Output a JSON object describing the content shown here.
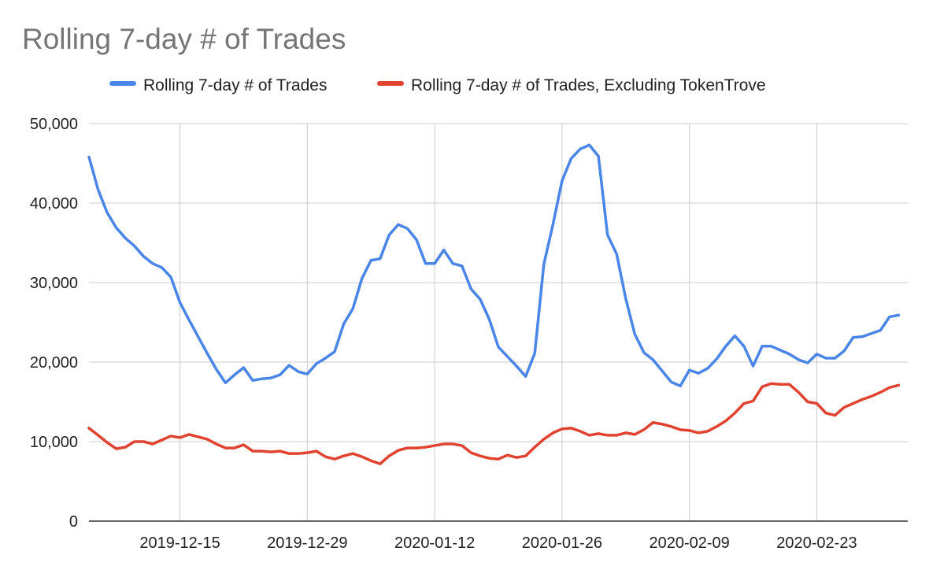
{
  "chart_data": {
    "type": "line",
    "title": "Rolling 7-day # of Trades",
    "xlabel": "",
    "ylabel": "",
    "ylim": [
      0,
      50000
    ],
    "y_ticks": [
      {
        "value": 0,
        "label": "0"
      },
      {
        "value": 10000,
        "label": "10,000"
      },
      {
        "value": 20000,
        "label": "20,000"
      },
      {
        "value": 30000,
        "label": "30,000"
      },
      {
        "value": 40000,
        "label": "40,000"
      },
      {
        "value": 50000,
        "label": "50,000"
      }
    ],
    "x_range": [
      "2019-12-05",
      "2020-03-04"
    ],
    "x_ticks": [
      "2019-12-15",
      "2019-12-29",
      "2020-01-12",
      "2020-01-26",
      "2020-02-09",
      "2020-02-23"
    ],
    "grid": true,
    "legend_position": "top",
    "series": [
      {
        "name": "Rolling 7-day # of Trades",
        "color": "#4a86e8",
        "points": [
          [
            "2019-12-05",
            45800
          ],
          [
            "2019-12-06",
            41700
          ],
          [
            "2019-12-07",
            38800
          ],
          [
            "2019-12-08",
            36900
          ],
          [
            "2019-12-09",
            35600
          ],
          [
            "2019-12-10",
            34600
          ],
          [
            "2019-12-11",
            33300
          ],
          [
            "2019-12-12",
            32400
          ],
          [
            "2019-12-13",
            31900
          ],
          [
            "2019-12-14",
            30700
          ],
          [
            "2019-12-15",
            27500
          ],
          [
            "2019-12-16",
            25300
          ],
          [
            "2019-12-17",
            23200
          ],
          [
            "2019-12-18",
            21100
          ],
          [
            "2019-12-19",
            19100
          ],
          [
            "2019-12-20",
            17400
          ],
          [
            "2019-12-21",
            18400
          ],
          [
            "2019-12-22",
            19300
          ],
          [
            "2019-12-23",
            17700
          ],
          [
            "2019-12-24",
            17900
          ],
          [
            "2019-12-25",
            18000
          ],
          [
            "2019-12-26",
            18400
          ],
          [
            "2019-12-27",
            19600
          ],
          [
            "2019-12-28",
            18800
          ],
          [
            "2019-12-29",
            18500
          ],
          [
            "2019-12-30",
            19800
          ],
          [
            "2019-12-31",
            20500
          ],
          [
            "2020-01-01",
            21300
          ],
          [
            "2020-01-02",
            24800
          ],
          [
            "2020-01-03",
            26700
          ],
          [
            "2020-01-04",
            30500
          ],
          [
            "2020-01-05",
            32800
          ],
          [
            "2020-01-06",
            33000
          ],
          [
            "2020-01-07",
            36000
          ],
          [
            "2020-01-08",
            37300
          ],
          [
            "2020-01-09",
            36800
          ],
          [
            "2020-01-10",
            35400
          ],
          [
            "2020-01-11",
            32400
          ],
          [
            "2020-01-12",
            32400
          ],
          [
            "2020-01-13",
            34100
          ],
          [
            "2020-01-14",
            32400
          ],
          [
            "2020-01-15",
            32100
          ],
          [
            "2020-01-16",
            29200
          ],
          [
            "2020-01-17",
            27900
          ],
          [
            "2020-01-18",
            25400
          ],
          [
            "2020-01-19",
            21900
          ],
          [
            "2020-01-20",
            20700
          ],
          [
            "2020-01-21",
            19500
          ],
          [
            "2020-01-22",
            18200
          ],
          [
            "2020-01-23",
            21100
          ],
          [
            "2020-01-24",
            32300
          ],
          [
            "2020-01-25",
            37300
          ],
          [
            "2020-01-26",
            42800
          ],
          [
            "2020-01-27",
            45600
          ],
          [
            "2020-01-28",
            46800
          ],
          [
            "2020-01-29",
            47300
          ],
          [
            "2020-01-30",
            45900
          ],
          [
            "2020-01-31",
            36000
          ],
          [
            "2020-02-01",
            33600
          ],
          [
            "2020-02-02",
            28000
          ],
          [
            "2020-02-03",
            23500
          ],
          [
            "2020-02-04",
            21200
          ],
          [
            "2020-02-05",
            20300
          ],
          [
            "2020-02-06",
            18900
          ],
          [
            "2020-02-07",
            17500
          ],
          [
            "2020-02-08",
            17000
          ],
          [
            "2020-02-09",
            19000
          ],
          [
            "2020-02-10",
            18600
          ],
          [
            "2020-02-11",
            19200
          ],
          [
            "2020-02-12",
            20400
          ],
          [
            "2020-02-13",
            22000
          ],
          [
            "2020-02-14",
            23300
          ],
          [
            "2020-02-15",
            22000
          ],
          [
            "2020-02-16",
            19500
          ],
          [
            "2020-02-17",
            22000
          ],
          [
            "2020-02-18",
            22000
          ],
          [
            "2020-02-19",
            21500
          ],
          [
            "2020-02-20",
            21000
          ],
          [
            "2020-02-21",
            20300
          ],
          [
            "2020-02-22",
            19900
          ],
          [
            "2020-02-23",
            21000
          ],
          [
            "2020-02-24",
            20500
          ],
          [
            "2020-02-25",
            20500
          ],
          [
            "2020-02-26",
            21400
          ],
          [
            "2020-02-27",
            23100
          ],
          [
            "2020-02-28",
            23200
          ],
          [
            "2020-02-29",
            23600
          ],
          [
            "2020-03-01",
            24000
          ],
          [
            "2020-03-02",
            25700
          ],
          [
            "2020-03-03",
            25900
          ]
        ]
      },
      {
        "name": "Rolling 7-day # of Trades, Excluding TokenTrove",
        "color": "#e0432f",
        "points": [
          [
            "2019-12-05",
            11700
          ],
          [
            "2019-12-06",
            10800
          ],
          [
            "2019-12-07",
            9900
          ],
          [
            "2019-12-08",
            9100
          ],
          [
            "2019-12-09",
            9300
          ],
          [
            "2019-12-10",
            10000
          ],
          [
            "2019-12-11",
            10000
          ],
          [
            "2019-12-12",
            9700
          ],
          [
            "2019-12-13",
            10200
          ],
          [
            "2019-12-14",
            10700
          ],
          [
            "2019-12-15",
            10500
          ],
          [
            "2019-12-16",
            10900
          ],
          [
            "2019-12-17",
            10600
          ],
          [
            "2019-12-18",
            10300
          ],
          [
            "2019-12-19",
            9700
          ],
          [
            "2019-12-20",
            9200
          ],
          [
            "2019-12-21",
            9200
          ],
          [
            "2019-12-22",
            9600
          ],
          [
            "2019-12-23",
            8800
          ],
          [
            "2019-12-24",
            8800
          ],
          [
            "2019-12-25",
            8700
          ],
          [
            "2019-12-26",
            8800
          ],
          [
            "2019-12-27",
            8500
          ],
          [
            "2019-12-28",
            8500
          ],
          [
            "2019-12-29",
            8600
          ],
          [
            "2019-12-30",
            8800
          ],
          [
            "2019-12-31",
            8100
          ],
          [
            "2020-01-01",
            7800
          ],
          [
            "2020-01-02",
            8200
          ],
          [
            "2020-01-03",
            8500
          ],
          [
            "2020-01-04",
            8100
          ],
          [
            "2020-01-05",
            7600
          ],
          [
            "2020-01-06",
            7200
          ],
          [
            "2020-01-07",
            8200
          ],
          [
            "2020-01-08",
            8900
          ],
          [
            "2020-01-09",
            9200
          ],
          [
            "2020-01-10",
            9200
          ],
          [
            "2020-01-11",
            9300
          ],
          [
            "2020-01-12",
            9500
          ],
          [
            "2020-01-13",
            9700
          ],
          [
            "2020-01-14",
            9700
          ],
          [
            "2020-01-15",
            9500
          ],
          [
            "2020-01-16",
            8600
          ],
          [
            "2020-01-17",
            8200
          ],
          [
            "2020-01-18",
            7900
          ],
          [
            "2020-01-19",
            7800
          ],
          [
            "2020-01-20",
            8300
          ],
          [
            "2020-01-21",
            8000
          ],
          [
            "2020-01-22",
            8200
          ],
          [
            "2020-01-23",
            9300
          ],
          [
            "2020-01-24",
            10300
          ],
          [
            "2020-01-25",
            11100
          ],
          [
            "2020-01-26",
            11600
          ],
          [
            "2020-01-27",
            11700
          ],
          [
            "2020-01-28",
            11300
          ],
          [
            "2020-01-29",
            10800
          ],
          [
            "2020-01-30",
            11000
          ],
          [
            "2020-01-31",
            10800
          ],
          [
            "2020-02-01",
            10800
          ],
          [
            "2020-02-02",
            11100
          ],
          [
            "2020-02-03",
            10900
          ],
          [
            "2020-02-04",
            11500
          ],
          [
            "2020-02-05",
            12400
          ],
          [
            "2020-02-06",
            12200
          ],
          [
            "2020-02-07",
            11900
          ],
          [
            "2020-02-08",
            11500
          ],
          [
            "2020-02-09",
            11400
          ],
          [
            "2020-02-10",
            11100
          ],
          [
            "2020-02-11",
            11300
          ],
          [
            "2020-02-12",
            11900
          ],
          [
            "2020-02-13",
            12600
          ],
          [
            "2020-02-14",
            13600
          ],
          [
            "2020-02-15",
            14800
          ],
          [
            "2020-02-16",
            15100
          ],
          [
            "2020-02-17",
            16900
          ],
          [
            "2020-02-18",
            17300
          ],
          [
            "2020-02-19",
            17200
          ],
          [
            "2020-02-20",
            17200
          ],
          [
            "2020-02-21",
            16200
          ],
          [
            "2020-02-22",
            15000
          ],
          [
            "2020-02-23",
            14800
          ],
          [
            "2020-02-24",
            13600
          ],
          [
            "2020-02-25",
            13300
          ],
          [
            "2020-02-26",
            14300
          ],
          [
            "2020-02-27",
            14800
          ],
          [
            "2020-02-28",
            15300
          ],
          [
            "2020-02-29",
            15700
          ],
          [
            "2020-03-01",
            16200
          ],
          [
            "2020-03-02",
            16800
          ],
          [
            "2020-03-03",
            17100
          ]
        ]
      }
    ]
  }
}
